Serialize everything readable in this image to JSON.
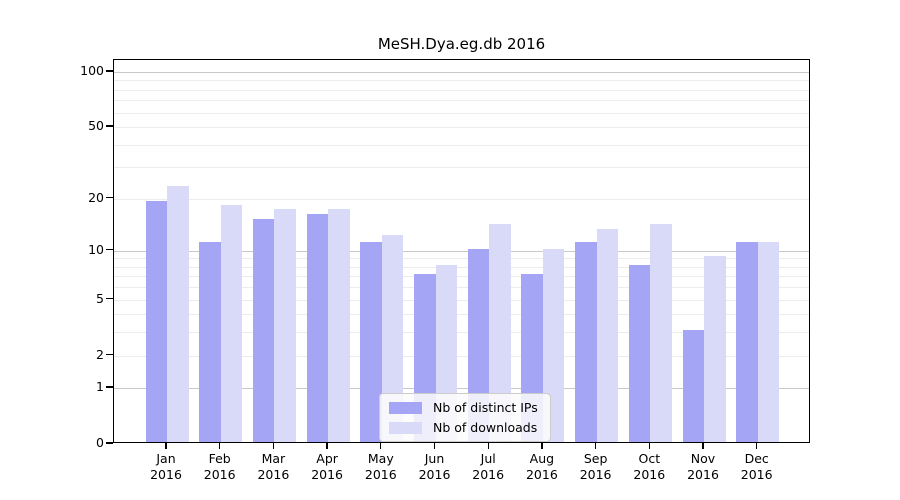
{
  "chart_data": {
    "type": "bar",
    "title": "MeSH.Dya.eg.db 2016",
    "categories": [
      "Jan",
      "Feb",
      "Mar",
      "Apr",
      "May",
      "Jun",
      "Jul",
      "Aug",
      "Sep",
      "Oct",
      "Nov",
      "Dec"
    ],
    "year": "2016",
    "series": [
      {
        "name": "Nb of distinct IPs",
        "color": "#a5a5f5",
        "values": [
          19,
          11,
          15,
          16,
          11,
          7,
          10,
          7,
          11,
          8,
          3,
          11
        ]
      },
      {
        "name": "Nb of downloads",
        "color": "#d9d9f8",
        "values": [
          23,
          18,
          17,
          17,
          12,
          8,
          14,
          10,
          13,
          14,
          9,
          11
        ]
      }
    ],
    "y_scale": "log1p",
    "y_ticks": [
      100,
      50,
      20,
      10,
      5,
      2,
      1,
      0
    ],
    "ylim": [
      0,
      110
    ],
    "grid": {
      "major_values": [
        1,
        10,
        100
      ],
      "minor_values": [
        2,
        3,
        4,
        5,
        6,
        7,
        8,
        9,
        20,
        30,
        40,
        50,
        60,
        70,
        80,
        90
      ],
      "major_color": "#c9c9c9",
      "minor_color": "#ececec"
    },
    "legend": {
      "position": "lower-center",
      "entries": [
        "Nb of distinct IPs",
        "Nb of downloads"
      ]
    }
  }
}
